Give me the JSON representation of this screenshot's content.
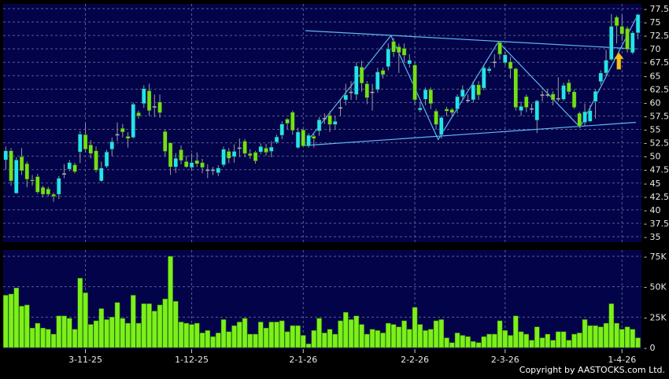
{
  "chart_data": [
    {
      "type": "candlestick",
      "panel": "price",
      "ylim": [
        35,
        77.5
      ],
      "yticks": [
        35,
        37.5,
        40,
        42.5,
        45,
        47.5,
        50,
        52.5,
        55,
        57.5,
        60,
        62.5,
        65,
        67.5,
        70,
        72.5,
        75,
        77.5
      ],
      "grid": true,
      "colors": {
        "up": "#22e4f0",
        "down": "#74e016",
        "flat": "#b0b0b0",
        "wick": "#9a9a9a",
        "trendline": "#5fb6f0",
        "arrow": "#f4c020"
      },
      "ohlc_order": [
        "open",
        "high",
        "low",
        "close"
      ],
      "candles": [
        [
          49.3,
          51.8,
          47.5,
          51.0
        ],
        [
          51.0,
          51.5,
          44.5,
          45.4
        ],
        [
          43.1,
          49.8,
          43.0,
          49.3
        ],
        [
          49.9,
          51.5,
          46.5,
          47.3
        ],
        [
          48.6,
          49.0,
          44.2,
          45.7
        ],
        [
          45.6,
          46.5,
          44.5,
          45.4
        ],
        [
          46.2,
          46.7,
          43.0,
          43.3
        ],
        [
          44.2,
          44.5,
          42.3,
          42.9
        ],
        [
          43.9,
          44.3,
          42.5,
          42.9
        ],
        [
          42.9,
          43.2,
          41.5,
          42.5
        ],
        [
          42.9,
          46.3,
          42.0,
          45.9
        ],
        [
          46.8,
          48.5,
          45.9,
          46.8
        ],
        [
          47.6,
          49.3,
          47.2,
          48.8
        ],
        [
          48.4,
          48.8,
          46.8,
          47.1
        ],
        [
          50.8,
          54.7,
          48.7,
          54.1
        ],
        [
          54.0,
          56.2,
          50.7,
          51.3
        ],
        [
          52.1,
          53.0,
          49.6,
          50.5
        ],
        [
          51.0,
          51.8,
          47.0,
          47.4
        ],
        [
          45.4,
          49.0,
          45.2,
          47.8
        ],
        [
          48.1,
          51.2,
          47.8,
          50.8
        ],
        [
          51.3,
          53.5,
          50.0,
          52.7
        ],
        [
          54.1,
          56.3,
          52.8,
          54.1
        ],
        [
          55.2,
          56.0,
          53.5,
          54.5
        ],
        [
          53.7,
          54.5,
          51.6,
          53.3
        ],
        [
          53.5,
          60.0,
          53.3,
          59.7
        ],
        [
          58.1,
          58.5,
          57.0,
          57.5
        ],
        [
          59.8,
          63.2,
          59.0,
          62.6
        ],
        [
          62.2,
          63.5,
          57.5,
          58.5
        ],
        [
          59.3,
          61.5,
          57.3,
          59.3
        ],
        [
          60.1,
          61.5,
          57.2,
          58.1
        ],
        [
          54.6,
          54.9,
          49.9,
          50.9
        ],
        [
          52.5,
          52.5,
          46.5,
          48.0
        ],
        [
          48.0,
          50.6,
          46.9,
          49.6
        ],
        [
          51.2,
          52.0,
          48.5,
          49.2
        ],
        [
          49.0,
          50.1,
          47.8,
          48.0
        ],
        [
          47.9,
          50.5,
          47.4,
          48.8
        ],
        [
          49.2,
          50.7,
          48.0,
          48.6
        ],
        [
          48.8,
          49.5,
          46.8,
          47.9
        ],
        [
          47.5,
          48.5,
          45.9,
          47.5
        ],
        [
          47.5,
          48.0,
          46.5,
          47.5
        ],
        [
          46.9,
          48.3,
          46.3,
          47.8
        ],
        [
          48.4,
          51.8,
          48.0,
          51.3
        ],
        [
          50.9,
          51.5,
          48.7,
          49.6
        ],
        [
          49.9,
          52.2,
          48.8,
          50.9
        ],
        [
          51.6,
          53.3,
          49.8,
          51.6
        ],
        [
          52.8,
          53.2,
          49.8,
          50.5
        ],
        [
          50.5,
          51.3,
          49.5,
          50.1
        ],
        [
          50.7,
          51.0,
          48.6,
          49.1
        ],
        [
          50.8,
          52.4,
          50.4,
          51.8
        ],
        [
          51.5,
          52.3,
          50.1,
          50.7
        ],
        [
          50.9,
          52.8,
          49.8,
          51.7
        ],
        [
          52.6,
          54.0,
          52.3,
          53.6
        ],
        [
          53.9,
          56.5,
          53.2,
          56.0
        ],
        [
          56.9,
          57.1,
          55.0,
          56.1
        ],
        [
          58.2,
          58.5,
          54.0,
          54.8
        ],
        [
          51.6,
          55.3,
          51.4,
          54.5
        ],
        [
          54.9,
          55.1,
          51.8,
          51.9
        ],
        [
          51.9,
          54.3,
          51.6,
          53.9
        ],
        [
          53.7,
          54.2,
          51.6,
          53.3
        ],
        [
          54.7,
          57.3,
          53.8,
          56.8
        ],
        [
          57.1,
          58.0,
          56.0,
          57.1
        ],
        [
          57.6,
          58.4,
          54.5,
          55.9
        ],
        [
          55.9,
          57.5,
          55.0,
          56.5
        ],
        [
          59.1,
          60.5,
          57.5,
          59.1
        ],
        [
          60.5,
          63.5,
          59.5,
          61.4
        ],
        [
          62.0,
          64.0,
          60.5,
          62.0
        ],
        [
          61.5,
          67.5,
          60.5,
          66.8
        ],
        [
          66.6,
          67.8,
          62.0,
          63.6
        ],
        [
          63.5,
          64.0,
          59.7,
          60.9
        ],
        [
          62.0,
          63.5,
          58.5,
          62.0
        ],
        [
          62.4,
          66.5,
          61.8,
          65.7
        ],
        [
          66.0,
          66.5,
          64.5,
          65.2
        ],
        [
          66.7,
          71.0,
          66.0,
          70.0
        ],
        [
          71.4,
          72.0,
          68.5,
          69.4
        ],
        [
          70.4,
          71.0,
          65.5,
          69.3
        ],
        [
          70.1,
          71.0,
          67.5,
          68.8
        ],
        [
          67.2,
          69.0,
          66.5,
          67.9
        ],
        [
          67.0,
          67.5,
          59.5,
          60.5
        ],
        [
          58.6,
          60.0,
          58.2,
          59.0
        ],
        [
          60.6,
          62.8,
          59.5,
          62.4
        ],
        [
          62.4,
          62.8,
          58.8,
          59.8
        ],
        [
          58.4,
          58.8,
          55.0,
          55.9
        ],
        [
          54.0,
          57.5,
          53.3,
          57.2
        ],
        [
          58.8,
          59.2,
          57.5,
          58.4
        ],
        [
          58.7,
          59.0,
          57.3,
          58.1
        ],
        [
          58.8,
          61.5,
          58.0,
          61.1
        ],
        [
          61.1,
          63.2,
          60.5,
          62.4
        ],
        [
          60.5,
          61.5,
          60.0,
          60.5
        ],
        [
          60.5,
          64.0,
          60.0,
          63.3
        ],
        [
          63.3,
          64.0,
          60.5,
          61.4
        ],
        [
          62.7,
          67.0,
          62.3,
          66.5
        ],
        [
          65.9,
          66.7,
          65.5,
          66.3
        ],
        [
          67.6,
          69.0,
          66.5,
          67.6
        ],
        [
          71.2,
          71.3,
          68.0,
          69.0
        ],
        [
          67.4,
          69.5,
          67.0,
          68.9
        ],
        [
          67.6,
          68.5,
          64.5,
          66.3
        ],
        [
          66.3,
          66.5,
          58.5,
          59.1
        ],
        [
          58.5,
          60.2,
          57.5,
          59.3
        ],
        [
          61.1,
          61.5,
          58.2,
          59.1
        ],
        [
          58.9,
          59.8,
          58.0,
          58.9
        ],
        [
          56.7,
          60.5,
          54.3,
          60.3
        ],
        [
          61.5,
          62.2,
          60.2,
          61.5
        ],
        [
          61.5,
          62.5,
          61.0,
          61.5
        ],
        [
          61.6,
          62.1,
          59.5,
          60.5
        ],
        [
          60.8,
          64.7,
          60.2,
          60.8
        ],
        [
          60.6,
          63.7,
          60.3,
          63.2
        ],
        [
          63.7,
          64.3,
          61.5,
          62.0
        ],
        [
          62.0,
          62.4,
          58.8,
          59.1
        ],
        [
          58.0,
          58.3,
          55.3,
          55.6
        ],
        [
          56.3,
          59.8,
          55.6,
          58.3
        ],
        [
          56.5,
          59.5,
          56.3,
          58.5
        ],
        [
          60.2,
          62.5,
          57.0,
          62.1
        ],
        [
          63.9,
          66.0,
          63.3,
          65.5
        ],
        [
          65.5,
          69.8,
          65.0,
          67.9
        ],
        [
          68.0,
          76.5,
          67.8,
          74.2
        ],
        [
          75.9,
          76.2,
          71.0,
          74.3
        ],
        [
          74.2,
          76.3,
          71.5,
          72.8
        ],
        [
          73.8,
          74.2,
          69.3,
          69.9
        ],
        [
          69.3,
          73.3,
          69.0,
          73.0
        ],
        [
          73.0,
          76.5,
          71.8,
          76.4
        ]
      ],
      "trendlines": [
        {
          "points": [
            [
              57.4,
              73.4
            ],
            [
              119.6,
              70.0
            ]
          ]
        },
        {
          "points": [
            [
              57.4,
              52.0
            ],
            [
              119.6,
              56.3
            ]
          ]
        },
        {
          "points": [
            [
              58.1,
              53.2
            ],
            [
              73.5,
              72.5
            ],
            [
              82.4,
              53.1
            ],
            [
              93.7,
              71.3
            ],
            [
              109.1,
              55.4
            ],
            [
              120,
              76.4
            ]
          ]
        }
      ],
      "annotations": [
        {
          "type": "arrow-up",
          "at_candle": 116.4,
          "from": 66.2,
          "to": 69.3
        }
      ]
    },
    {
      "type": "bar",
      "panel": "volume",
      "ylim": [
        0,
        78
      ],
      "yticks": [
        {
          "v": 0,
          "label": "0"
        },
        {
          "v": 25,
          "label": "25K"
        },
        {
          "v": 50,
          "label": "50K"
        },
        {
          "v": 75,
          "label": "75K"
        }
      ],
      "grid": true,
      "color": "#7cf01a",
      "values": [
        43,
        44,
        49,
        34,
        35,
        16,
        20,
        16,
        15,
        11,
        26,
        26,
        24,
        15,
        57,
        45,
        19,
        22,
        32,
        23,
        25,
        37,
        24,
        20,
        43,
        20,
        36,
        36,
        30,
        35,
        40,
        75,
        38,
        21,
        20,
        19,
        20,
        12,
        14,
        9,
        12,
        23,
        13,
        18,
        21,
        24,
        11,
        11,
        21,
        16,
        21,
        21,
        22,
        13,
        18,
        18,
        10,
        3,
        14,
        24,
        12,
        15,
        11,
        22,
        29,
        23,
        26,
        19,
        11,
        15,
        14,
        12,
        20,
        19,
        17,
        22,
        15,
        33,
        19,
        14,
        15,
        22,
        23,
        8,
        4,
        12,
        10,
        9,
        5,
        4,
        9,
        11,
        11,
        22,
        14,
        10,
        26,
        13,
        11,
        6,
        17,
        8,
        11,
        6,
        13,
        13,
        6,
        11,
        12,
        23,
        18,
        18,
        17,
        20,
        36,
        20,
        15,
        17,
        15,
        8
      ]
    }
  ],
  "x_axis": {
    "ticks": [
      {
        "at_candle": 16,
        "label": "3-11-25"
      },
      {
        "at_candle": 36,
        "label": "1-12-25"
      },
      {
        "at_candle": 57,
        "label": "2-1-26"
      },
      {
        "at_candle": 78,
        "label": "2-2-26"
      },
      {
        "at_candle": 95,
        "label": "2-3-26"
      },
      {
        "at_candle": 117,
        "label": "1-4-26"
      }
    ]
  },
  "footer": {
    "copyright": "Copyright by AASTOCKS.com Ltd."
  }
}
